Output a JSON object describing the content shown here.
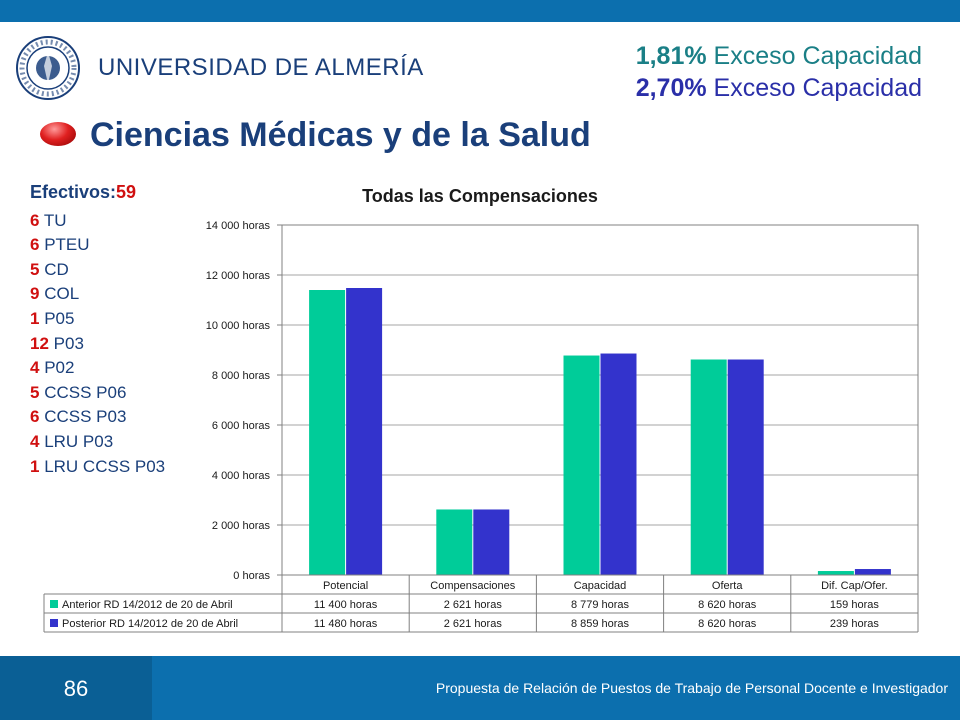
{
  "header": {
    "logo_text": "UNIVERSIDAD DE ALMERÍA",
    "seal_text": "UNIVERSITAS ALMERIENSIS"
  },
  "excess": {
    "line1_pct": "1,81%",
    "line1_text": " Exceso Capacidad",
    "line2_pct": "2,70%",
    "line2_text": " Exceso Capacidad"
  },
  "title": "Ciencias Médicas y de la Salud",
  "efectivos": {
    "label": "Efectivos:",
    "total": "59",
    "items": [
      {
        "count": "6",
        "label": "TU"
      },
      {
        "count": "6",
        "label": "PTEU"
      },
      {
        "count": "5",
        "label": "CD"
      },
      {
        "count": "9",
        "label": "COL"
      },
      {
        "count": "1",
        "label": "P05"
      },
      {
        "count": "12",
        "label": "P03"
      },
      {
        "count": "4",
        "label": "P02"
      },
      {
        "count": "5",
        "label": "CCSS P06"
      },
      {
        "count": "6",
        "label": "CCSS P03"
      },
      {
        "count": "4",
        "label": "LRU P03"
      },
      {
        "count": "1",
        "label": "LRU CCSS P03"
      }
    ]
  },
  "chart_data": {
    "type": "bar",
    "title": "Todas las Compensaciones",
    "categories": [
      "Potencial",
      "Compensaciones",
      "Capacidad",
      "Oferta",
      "Dif. Cap/Ofer."
    ],
    "ylim": [
      0,
      14000
    ],
    "yticks": [
      0,
      2000,
      4000,
      6000,
      8000,
      10000,
      12000,
      14000
    ],
    "ytick_labels": [
      "0 horas",
      "2 000 horas",
      "4 000 horas",
      "6 000 horas",
      "8 000 horas",
      "10 000 horas",
      "12 000 horas",
      "14 000 horas"
    ],
    "series": [
      {
        "name": "Anterior RD 14/2012 de 20 de Abril",
        "color": "#00cc99",
        "values": [
          11400,
          2621,
          8779,
          8620,
          159
        ],
        "labels": [
          "11 400 horas",
          "2 621 horas",
          "8 779 horas",
          "8 620 horas",
          "159 horas"
        ]
      },
      {
        "name": "Posterior RD 14/2012 de 20 de Abril",
        "color": "#3333cc",
        "values": [
          11480,
          2621,
          8859,
          8620,
          239
        ],
        "labels": [
          "11 480 horas",
          "2 621 horas",
          "8 859 horas",
          "8 620 horas",
          "239 horas"
        ]
      }
    ],
    "grid": true,
    "legend": "data-table"
  },
  "footer": {
    "page_number": "86",
    "text": "Propuesta de Relación de Puestos de Trabajo de Personal Docente e Investigador"
  }
}
